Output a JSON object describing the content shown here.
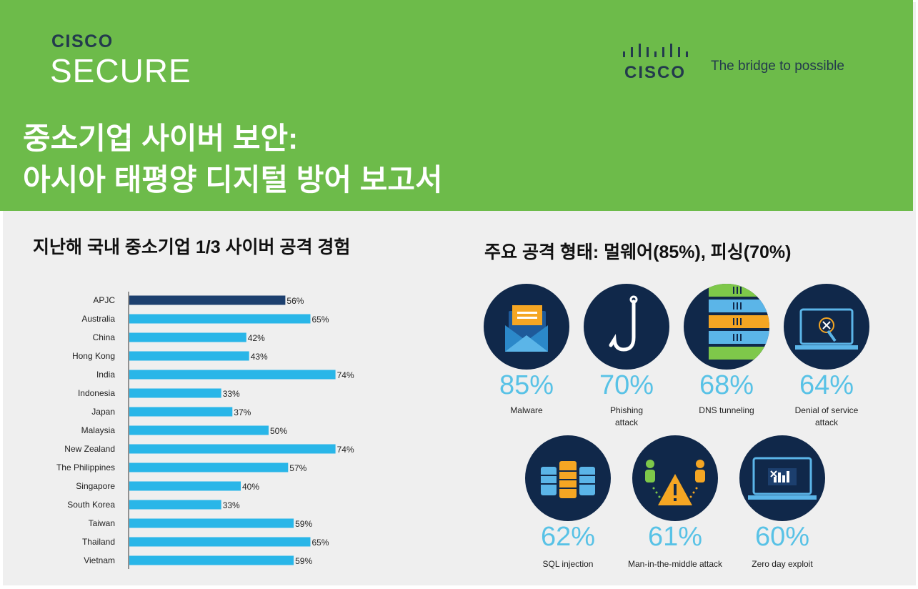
{
  "header": {
    "brand_small": "CISCO",
    "brand_big": "SECURE",
    "logo_word": "CISCO",
    "tagline": "The bridge to possible",
    "title_line1": "중소기업 사이버 보안:",
    "title_line2": "아시아 태평양 디지털 방어 보고서"
  },
  "left_heading": "지난해 국내 중소기업 1/3 사이버 공격 경험",
  "right_heading": "주요 공격 형태: 멀웨어(85%), 피싱(70%)",
  "colors": {
    "header_green": "#6dbb4a",
    "navy": "#10284a",
    "bar_highlight": "#1c3f6e",
    "bar_default": "#29b6e8",
    "percent_blue": "#58c2e6"
  },
  "chart_data": {
    "type": "bar",
    "orientation": "horizontal",
    "categories": [
      "APJC",
      "Australia",
      "China",
      "Hong Kong",
      "India",
      "Indonesia",
      "Japan",
      "Malaysia",
      "New Zealand",
      "The Philippines",
      "Singapore",
      "South Korea",
      "Taiwan",
      "Thailand",
      "Vietnam"
    ],
    "values": [
      56,
      65,
      42,
      43,
      74,
      33,
      37,
      50,
      74,
      57,
      40,
      33,
      59,
      65,
      59
    ],
    "value_labels": [
      "56%",
      "65%",
      "42%",
      "43%",
      "74%",
      "33%",
      "37%",
      "50%",
      "74%",
      "57%",
      "40%",
      "33%",
      "59%",
      "65%",
      "59%"
    ],
    "highlight": "APJC",
    "unit": "%",
    "xlim": [
      0,
      100
    ]
  },
  "attack_types": [
    {
      "icon": "envelope-icon",
      "percent": "85%",
      "label_lines": [
        "Malware"
      ]
    },
    {
      "icon": "fishing-hook-icon",
      "percent": "70%",
      "label_lines": [
        "Phishing",
        "attack"
      ]
    },
    {
      "icon": "server-stack-icon",
      "percent": "68%",
      "label_lines": [
        "DNS tunneling"
      ]
    },
    {
      "icon": "laptop-plug-icon",
      "percent": "64%",
      "label_lines": [
        "Denial of service",
        "attack"
      ]
    },
    {
      "icon": "database-icon",
      "percent": "62%",
      "label_lines": [
        "SQL injection"
      ]
    },
    {
      "icon": "warning-users-icon",
      "percent": "61%",
      "label_lines": [
        "Man-in-the-middle attack"
      ]
    },
    {
      "icon": "laptop-exploit-icon",
      "percent": "60%",
      "label_lines": [
        "Zero day exploit"
      ]
    }
  ]
}
